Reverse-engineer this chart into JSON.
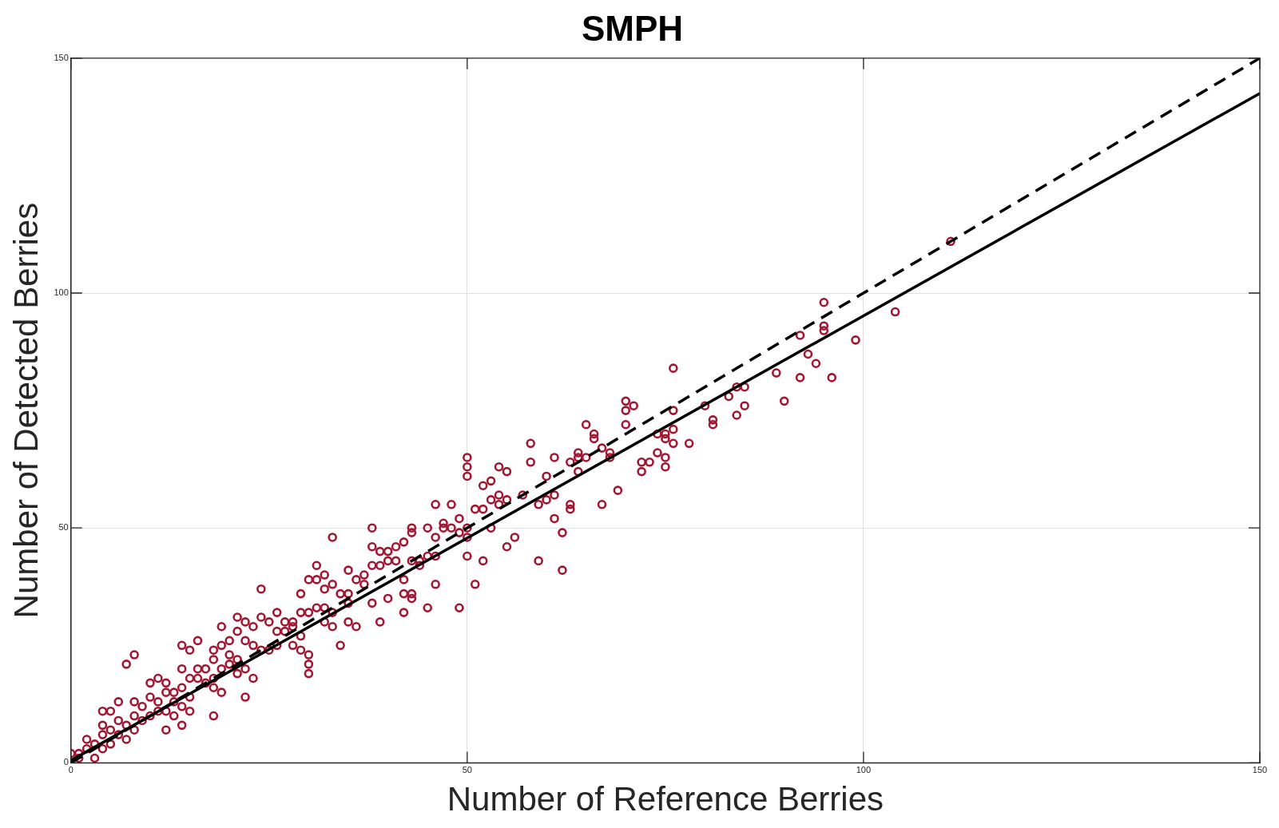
{
  "chart_data": {
    "type": "scatter",
    "title": "SMPH",
    "xlabel": "Number of Reference Berries",
    "ylabel": "Number of Detected Berries",
    "xlim": [
      0,
      150
    ],
    "ylim": [
      0,
      150
    ],
    "xticks": [
      0,
      50,
      100,
      150
    ],
    "yticks": [
      0,
      50,
      100,
      150
    ],
    "grid": true,
    "legend": false,
    "series": [
      {
        "color": "#a31631",
        "marker": "circle",
        "x": [
          111,
          104,
          99,
          95,
          95,
          95,
          96,
          92,
          92,
          93,
          94,
          89,
          90,
          85,
          85,
          84,
          84,
          83,
          81,
          81,
          80,
          78,
          76,
          76,
          76,
          76,
          75,
          75,
          75,
          75,
          74,
          74,
          73,
          72,
          72,
          71,
          70,
          70,
          70,
          69,
          68,
          68,
          67,
          67,
          66,
          66,
          65,
          65,
          64,
          64,
          64,
          63,
          63,
          63,
          62,
          62,
          61,
          61,
          61,
          60,
          60,
          59,
          59,
          58,
          58,
          57,
          56,
          55,
          55,
          55,
          54,
          54,
          54,
          53,
          53,
          53,
          52,
          52,
          52,
          51,
          51,
          50,
          50,
          50,
          50,
          50,
          50,
          49,
          49,
          49,
          48,
          48,
          47,
          47,
          46,
          46,
          46,
          46,
          45,
          45,
          45,
          44,
          44,
          43,
          43,
          43,
          43,
          43,
          42,
          42,
          42,
          42,
          41,
          41,
          40,
          40,
          40,
          39,
          39,
          39,
          38,
          38,
          38,
          38,
          37,
          37,
          36,
          36,
          35,
          35,
          35,
          35,
          34,
          34,
          33,
          33,
          33,
          33,
          32,
          32,
          32,
          32,
          31,
          31,
          31,
          30,
          30,
          30,
          30,
          30,
          29,
          29,
          29,
          29,
          28,
          28,
          28,
          27,
          27,
          26,
          26,
          26,
          25,
          25,
          24,
          24,
          24,
          23,
          23,
          23,
          22,
          22,
          22,
          22,
          21,
          21,
          21,
          21,
          20,
          20,
          20,
          19,
          19,
          19,
          19,
          18,
          18,
          18,
          18,
          18,
          17,
          17,
          16,
          16,
          16,
          15,
          15,
          15,
          15,
          14,
          14,
          14,
          14,
          14,
          13,
          13,
          13,
          12,
          12,
          12,
          12,
          11,
          11,
          11,
          10,
          10,
          10,
          9,
          9,
          8,
          8,
          8,
          8,
          7,
          7,
          7,
          6,
          6,
          6,
          5,
          5,
          5,
          4,
          4,
          4,
          4,
          3,
          3,
          2,
          2,
          1,
          1,
          0
        ],
        "values": [
          111,
          96,
          90,
          98,
          93,
          92,
          82,
          91,
          82,
          87,
          85,
          83,
          77,
          80,
          76,
          80,
          74,
          78,
          73,
          72,
          76,
          68,
          84,
          75,
          71,
          68,
          70,
          69,
          65,
          63,
          70,
          66,
          64,
          64,
          62,
          76,
          77,
          75,
          72,
          58,
          66,
          65,
          67,
          55,
          70,
          69,
          72,
          65,
          65,
          66,
          62,
          64,
          55,
          54,
          49,
          41,
          65,
          57,
          52,
          61,
          56,
          55,
          43,
          68,
          64,
          57,
          48,
          62,
          56,
          46,
          63,
          57,
          55,
          60,
          56,
          50,
          59,
          54,
          43,
          54,
          38,
          65,
          63,
          61,
          50,
          48,
          44,
          52,
          49,
          33,
          55,
          50,
          51,
          50,
          55,
          48,
          44,
          38,
          50,
          44,
          33,
          43,
          42,
          50,
          49,
          43,
          36,
          35,
          47,
          39,
          36,
          32,
          46,
          43,
          45,
          43,
          35,
          45,
          42,
          30,
          50,
          46,
          42,
          34,
          40,
          38,
          39,
          29,
          41,
          36,
          34,
          30,
          36,
          25,
          48,
          38,
          32,
          29,
          40,
          37,
          33,
          30,
          42,
          39,
          33,
          39,
          32,
          23,
          21,
          19,
          36,
          32,
          27,
          24,
          30,
          29,
          25,
          30,
          28,
          28,
          32,
          25,
          30,
          24,
          37,
          31,
          24,
          29,
          25,
          18,
          30,
          26,
          20,
          14,
          31,
          28,
          22,
          19,
          26,
          21,
          23,
          29,
          25,
          20,
          15,
          24,
          22,
          18,
          16,
          10,
          20,
          17,
          26,
          20,
          18,
          18,
          14,
          24,
          11,
          20,
          16,
          12,
          25,
          8,
          15,
          13,
          10,
          17,
          15,
          11,
          7,
          13,
          11,
          18,
          14,
          10,
          17,
          12,
          9,
          23,
          10,
          7,
          13,
          21,
          8,
          5,
          13,
          9,
          6,
          11,
          7,
          4,
          11,
          6,
          8,
          3,
          1,
          4,
          5,
          3,
          1,
          2,
          2
        ]
      },
      {
        "type": "line",
        "color": "#000000",
        "marker": "none",
        "line_style": "solid",
        "x": [
          0,
          150
        ],
        "values": [
          0.5,
          142.5
        ]
      },
      {
        "type": "line",
        "color": "#000000",
        "marker": "none",
        "line_style": "dashed",
        "x": [
          0,
          150
        ],
        "values": [
          0,
          150
        ]
      }
    ]
  }
}
